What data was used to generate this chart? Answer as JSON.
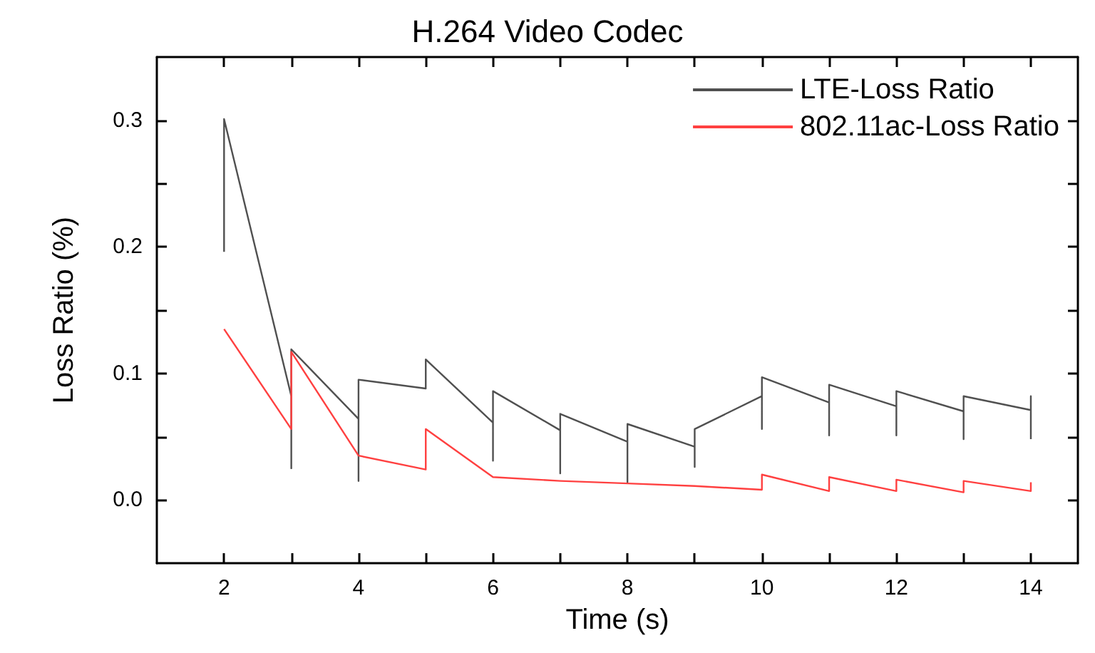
{
  "chart_data": {
    "type": "line",
    "title": "H.264 Video Codec",
    "xlabel": "Time (s)",
    "ylabel": "Loss Ratio (%)",
    "xlim": [
      1,
      14.7
    ],
    "xticks": [
      2,
      {
        "value": 3,
        "label": null
      },
      4,
      {
        "value": 5,
        "label": null
      },
      6,
      {
        "value": 7,
        "label": null
      },
      8,
      {
        "value": 9,
        "label": null
      },
      10,
      {
        "value": 11,
        "label": null
      },
      12,
      {
        "value": 13,
        "label": null
      },
      14
    ],
    "ylim": [
      -0.05,
      0.35
    ],
    "yticks": [
      {
        "value": 0,
        "label": "0.0"
      },
      {
        "value": 0.05,
        "label": null
      },
      0.1,
      {
        "value": 0.15,
        "label": null
      },
      0.2,
      {
        "value": 0.25,
        "label": null
      },
      0.3
    ],
    "grid": false,
    "legend": "top right",
    "marker": "none",
    "line_style": "solid",
    "series": [
      {
        "name": "LTE-Loss Ratio",
        "color": "#505050",
        "x": [
          2,
          2,
          3,
          3,
          3,
          4,
          4,
          4,
          5,
          5,
          6,
          6,
          6,
          7,
          7,
          7,
          8,
          8,
          8,
          9,
          9,
          9,
          10,
          10,
          10,
          11,
          11,
          11,
          12,
          12,
          12,
          13,
          13,
          13,
          14,
          14,
          14
        ],
        "values": [
          0.196,
          0.301,
          0.082,
          0.025,
          0.119,
          0.064,
          0.015,
          0.095,
          0.088,
          0.111,
          0.061,
          0.031,
          0.086,
          0.055,
          0.021,
          0.068,
          0.046,
          0.014,
          0.06,
          0.042,
          0.026,
          0.056,
          0.082,
          0.056,
          0.097,
          0.077,
          0.051,
          0.091,
          0.074,
          0.051,
          0.086,
          0.07,
          0.048,
          0.082,
          0.071,
          0.082,
          0.048
        ]
      },
      {
        "name": "802.11ac-Loss Ratio",
        "color": "#ff4040",
        "x": [
          2,
          3,
          3,
          4,
          5,
          5,
          6,
          7,
          8,
          9,
          10,
          10,
          11,
          11,
          12,
          12,
          13,
          13,
          14,
          14
        ],
        "values": [
          0.135,
          0.056,
          0.117,
          0.035,
          0.024,
          0.056,
          0.018,
          0.015,
          0.013,
          0.011,
          0.008,
          0.02,
          0.007,
          0.018,
          0.007,
          0.016,
          0.006,
          0.015,
          0.007,
          0.014
        ]
      }
    ]
  }
}
